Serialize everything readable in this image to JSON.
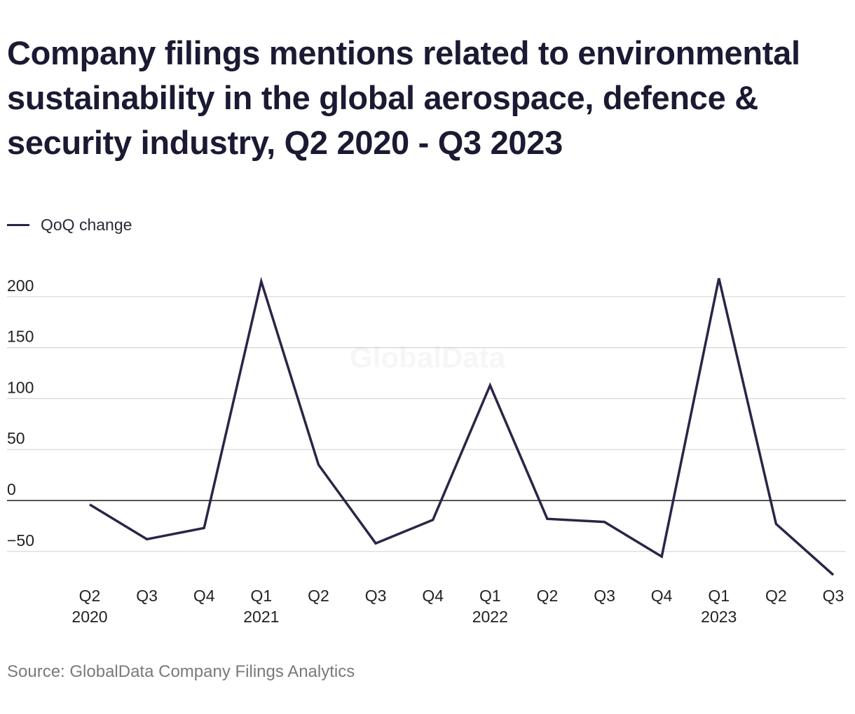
{
  "chart_data": {
    "type": "line",
    "title": "Company filings mentions related to environmental sustainability in the global aerospace, defence & security industry, Q2 2020 - Q3 2023",
    "xlabel": "",
    "ylabel": "",
    "categories": [
      {
        "quarter": "Q2",
        "year": "2020"
      },
      {
        "quarter": "Q3",
        "year": ""
      },
      {
        "quarter": "Q4",
        "year": ""
      },
      {
        "quarter": "Q1",
        "year": "2021"
      },
      {
        "quarter": "Q2",
        "year": ""
      },
      {
        "quarter": "Q3",
        "year": ""
      },
      {
        "quarter": "Q4",
        "year": ""
      },
      {
        "quarter": "Q1",
        "year": "2022"
      },
      {
        "quarter": "Q2",
        "year": ""
      },
      {
        "quarter": "Q3",
        "year": ""
      },
      {
        "quarter": "Q4",
        "year": ""
      },
      {
        "quarter": "Q1",
        "year": "2023"
      },
      {
        "quarter": "Q2",
        "year": ""
      },
      {
        "quarter": "Q3",
        "year": ""
      }
    ],
    "series": [
      {
        "name": "QoQ change",
        "color": "#2e2347",
        "values": [
          -4,
          -38,
          -27,
          215,
          35,
          -42,
          -19,
          113,
          -18,
          -21,
          -55,
          218,
          -23,
          -73
        ]
      }
    ],
    "ylim": [
      -70,
      210
    ],
    "yticks": [
      -50,
      0,
      50,
      100,
      150,
      200
    ],
    "ytick_labels": [
      "−50",
      "0",
      "50",
      "100",
      "150",
      "200"
    ],
    "grid": true,
    "legend_position": "top-left",
    "watermark": "GlobalData",
    "source": "Source: GlobalData Company Filings Analytics"
  }
}
